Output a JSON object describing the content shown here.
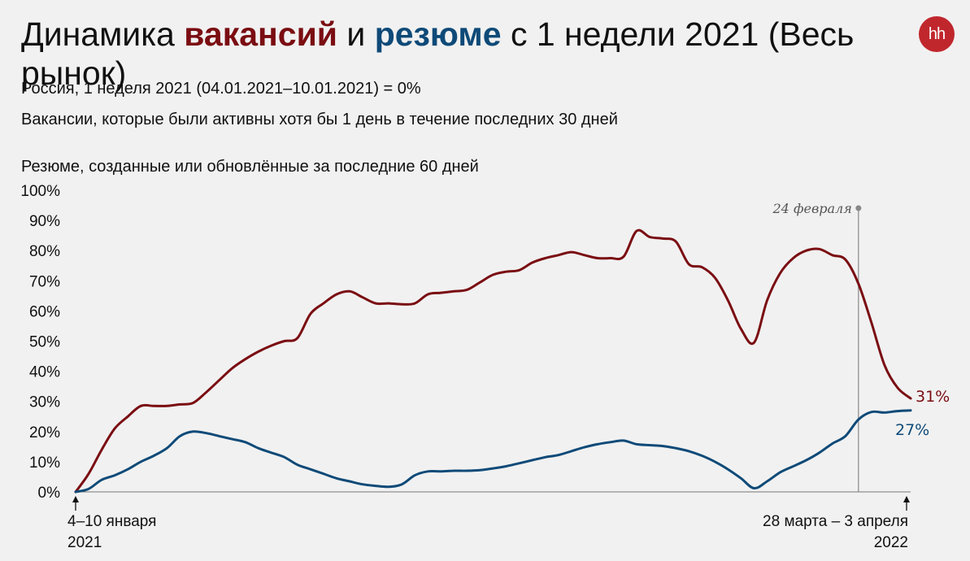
{
  "header": {
    "title_part1": "Динамика ",
    "title_vacancies": "вакансий",
    "title_part2": " и ",
    "title_resumes": "резюме",
    "title_part3": " с 1 недели 2021 (Весь рынок)",
    "subtitle": "Россия, 1 неделя 2021 (04.01.2021–10.01.2021) = 0%",
    "note_vacancies": "Вакансии, которые были активны хотя бы 1 день в течение последних 30 дней",
    "note_resumes": "Резюме, созданные или обновлённые за последние 60 дней",
    "logo_text": "hh"
  },
  "colors": {
    "vacancies": "#7a0d12",
    "resumes": "#0e4a78",
    "background": "#f1f1f1",
    "logo": "#c0272d"
  },
  "chart_data": {
    "type": "line",
    "x_unit": "week",
    "x_start_label": [
      "4–10 января",
      "2021"
    ],
    "x_end_label": [
      "28 марта – 3 апреля",
      "2022"
    ],
    "ylim": [
      0,
      100
    ],
    "yticks": [
      0,
      10,
      20,
      30,
      40,
      50,
      60,
      70,
      80,
      90,
      100
    ],
    "ytick_labels": [
      "0%",
      "10%",
      "20%",
      "30%",
      "40%",
      "50%",
      "60%",
      "70%",
      "80%",
      "90%",
      "100%"
    ],
    "grid": false,
    "event": {
      "label": "24 февраля",
      "week": 60
    },
    "series": [
      {
        "name": "вакансий",
        "color": "#7a0d12",
        "end_label": "31%",
        "values": [
          0,
          6,
          14,
          21,
          25,
          28.5,
          28.5,
          28.5,
          29,
          29.5,
          33,
          37,
          41,
          44,
          46.5,
          48.5,
          50,
          51,
          59,
          62.5,
          65.5,
          66.5,
          64.5,
          62.5,
          62.5,
          62.2,
          62.5,
          65.5,
          66,
          66.5,
          67,
          69.5,
          72,
          73,
          73.5,
          76,
          77.5,
          78.5,
          79.5,
          78.5,
          77.5,
          77.5,
          78,
          86.5,
          84.5,
          84,
          83,
          75.5,
          74.5,
          71,
          63.5,
          54,
          49.5,
          63.5,
          72.5,
          77.5,
          80,
          80.5,
          78.5,
          77,
          69,
          56,
          42,
          34.5,
          31
        ]
      },
      {
        "name": "резюме",
        "color": "#0e4a78",
        "end_label": "27%",
        "values": [
          0,
          1,
          4,
          5.5,
          7.5,
          10,
          12,
          14.5,
          18.5,
          20,
          19.5,
          18.5,
          17.5,
          16.5,
          14.5,
          13,
          11.5,
          9,
          7.5,
          6,
          4.5,
          3.5,
          2.5,
          2,
          1.7,
          2.5,
          5.5,
          6.8,
          6.8,
          7,
          7,
          7.2,
          7.8,
          8.5,
          9.5,
          10.5,
          11.5,
          12.2,
          13.5,
          14.8,
          15.8,
          16.5,
          17,
          15.8,
          15.5,
          15.2,
          14.5,
          13.5,
          12,
          10,
          7.5,
          4.5,
          1.2,
          3.5,
          6.5,
          8.5,
          10.5,
          13,
          16,
          18.5,
          24,
          26.5,
          26.3,
          26.8,
          27
        ]
      }
    ]
  }
}
